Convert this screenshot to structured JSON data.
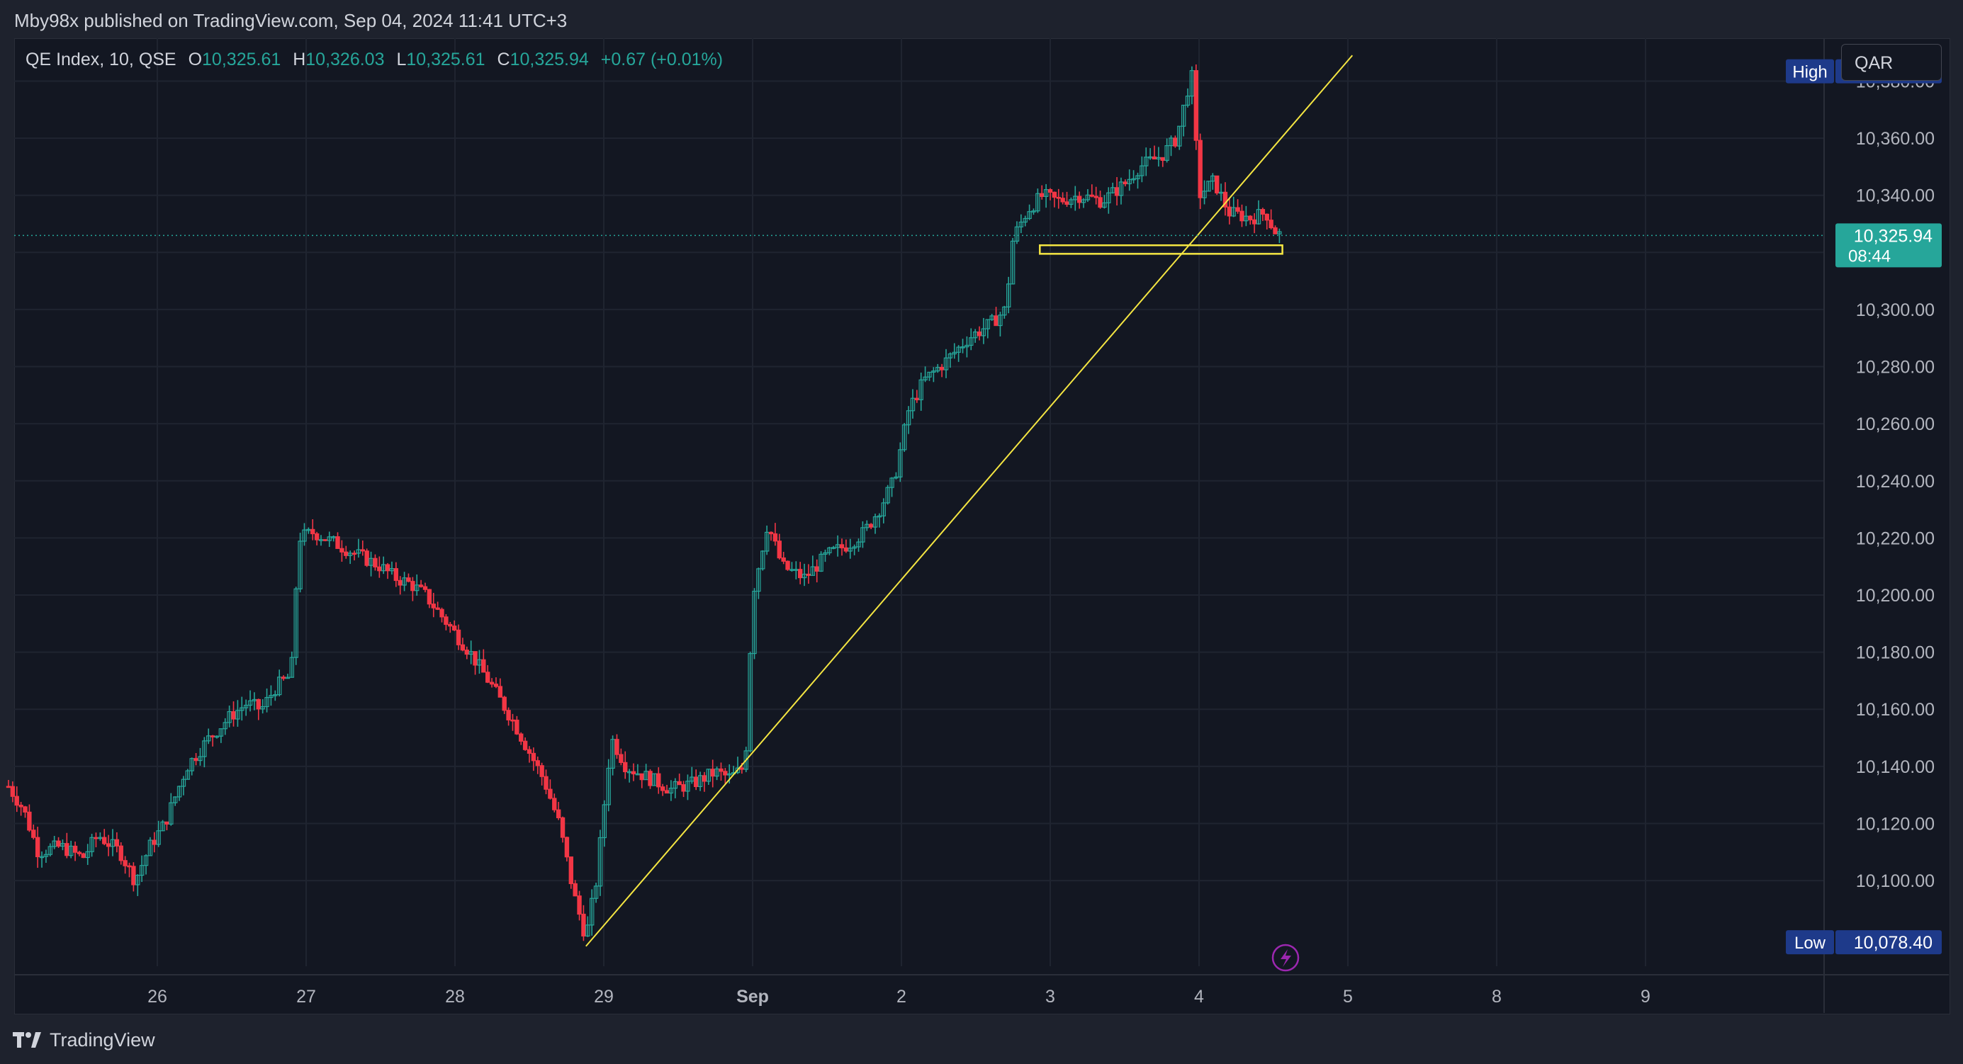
{
  "header": {
    "published_text": "Mby98x published on TradingView.com, Sep 04, 2024 11:41 UTC+3"
  },
  "legend": {
    "symbol": "QE Index, 10, QSE",
    "open_label": "O",
    "open": "10,325.61",
    "high_label": "H",
    "high": "10,326.03",
    "low_label": "L",
    "low": "10,325.61",
    "close_label": "C",
    "close": "10,325.94",
    "change": "+0.67 (+0.01%)"
  },
  "currency_button": "QAR",
  "footer": {
    "brand": "TradingView"
  },
  "colors": {
    "up": "#26a69a",
    "down": "#f23645",
    "drawing": "#f5e642",
    "background": "#131722",
    "grid": "#1f2430",
    "label_blue": "#1e3a8a",
    "lightning": "#9c27b0"
  },
  "chart_data": {
    "type": "candlestick",
    "title": "",
    "ylim": [
      10070,
      10395
    ],
    "y_ticks": [
      10100,
      10120,
      10140,
      10160,
      10180,
      10200,
      10220,
      10240,
      10260,
      10280,
      10300,
      10320,
      10340,
      10360,
      10380
    ],
    "y_tick_labels": [
      "10,100.00",
      "10,120.00",
      "10,140.00",
      "10,160.00",
      "10,180.00",
      "10,200.00",
      "10,220.00",
      "10,240.00",
      "10,260.00",
      "10,280.00",
      "10,300.00",
      "10,320.00",
      "10,340.00",
      "10,360.00",
      "10,380.00"
    ],
    "x_ticks": [
      {
        "day": 1.0,
        "label": "26",
        "bold": false
      },
      {
        "day": 2.0,
        "label": "27",
        "bold": false
      },
      {
        "day": 3.0,
        "label": "28",
        "bold": false
      },
      {
        "day": 4.0,
        "label": "29",
        "bold": false
      },
      {
        "day": 5.0,
        "label": "Sep",
        "bold": true
      },
      {
        "day": 6.0,
        "label": "2",
        "bold": false
      },
      {
        "day": 7.0,
        "label": "3",
        "bold": false
      },
      {
        "day": 8.0,
        "label": "4",
        "bold": false
      },
      {
        "day": 9.0,
        "label": "5",
        "bold": false
      },
      {
        "day": 10.0,
        "label": "8",
        "bold": false
      },
      {
        "day": 11.0,
        "label": "9",
        "bold": false
      }
    ],
    "session_path": [
      [
        0.0,
        10133
      ],
      [
        0.1,
        10125
      ],
      [
        0.2,
        10110
      ],
      [
        0.35,
        10112
      ],
      [
        0.5,
        10108
      ],
      [
        0.6,
        10116
      ],
      [
        0.75,
        10110
      ],
      [
        0.85,
        10100
      ],
      [
        0.95,
        10112
      ],
      [
        1.05,
        10120
      ],
      [
        1.2,
        10140
      ],
      [
        1.35,
        10150
      ],
      [
        1.5,
        10158
      ],
      [
        1.6,
        10162
      ],
      [
        1.7,
        10160
      ],
      [
        1.8,
        10168
      ],
      [
        1.9,
        10172
      ],
      [
        1.95,
        10220
      ],
      [
        2.05,
        10222
      ],
      [
        2.2,
        10218
      ],
      [
        2.35,
        10214
      ],
      [
        2.5,
        10210
      ],
      [
        2.6,
        10206
      ],
      [
        2.7,
        10204
      ],
      [
        2.8,
        10200
      ],
      [
        2.95,
        10190
      ],
      [
        3.1,
        10180
      ],
      [
        3.25,
        10168
      ],
      [
        3.4,
        10155
      ],
      [
        3.5,
        10145
      ],
      [
        3.6,
        10135
      ],
      [
        3.7,
        10120
      ],
      [
        3.8,
        10095
      ],
      [
        3.88,
        10080
      ],
      [
        3.95,
        10100
      ],
      [
        4.05,
        10150
      ],
      [
        4.15,
        10140
      ],
      [
        4.3,
        10136
      ],
      [
        4.45,
        10132
      ],
      [
        4.6,
        10134
      ],
      [
        4.75,
        10138
      ],
      [
        4.85,
        10136
      ],
      [
        4.95,
        10140
      ],
      [
        5.0,
        10200
      ],
      [
        5.1,
        10225
      ],
      [
        5.2,
        10210
      ],
      [
        5.35,
        10206
      ],
      [
        5.5,
        10214
      ],
      [
        5.65,
        10218
      ],
      [
        5.75,
        10222
      ],
      [
        5.85,
        10230
      ],
      [
        5.95,
        10240
      ],
      [
        6.05,
        10265
      ],
      [
        6.15,
        10275
      ],
      [
        6.3,
        10282
      ],
      [
        6.45,
        10290
      ],
      [
        6.6,
        10295
      ],
      [
        6.7,
        10300
      ],
      [
        6.75,
        10325
      ],
      [
        6.85,
        10335
      ],
      [
        6.95,
        10340
      ],
      [
        7.05,
        10338
      ],
      [
        7.2,
        10340
      ],
      [
        7.35,
        10338
      ],
      [
        7.5,
        10344
      ],
      [
        7.6,
        10350
      ],
      [
        7.75,
        10354
      ],
      [
        7.85,
        10360
      ],
      [
        7.95,
        10383
      ],
      [
        8.0,
        10340
      ],
      [
        8.1,
        10345
      ],
      [
        8.2,
        10334
      ],
      [
        8.35,
        10332
      ],
      [
        8.45,
        10334
      ],
      [
        8.5,
        10328
      ],
      [
        8.55,
        10325.94
      ]
    ],
    "last_price": 10325.94,
    "last_price_label": "10,325.94",
    "countdown": "08:44",
    "high": {
      "label": "High",
      "value": "10,383.42",
      "y": 10383.42
    },
    "low": {
      "label": "Low",
      "value": "10,078.40",
      "y": 10078.4
    },
    "drawings": {
      "trendline": {
        "start": {
          "day": 3.88,
          "price": 10077
        },
        "end": {
          "day": 9.03,
          "price": 10389
        }
      },
      "rectangle": {
        "day_start": 6.93,
        "day_end": 8.56,
        "price_top": 10322.5,
        "price_bottom": 10319.5
      }
    }
  }
}
